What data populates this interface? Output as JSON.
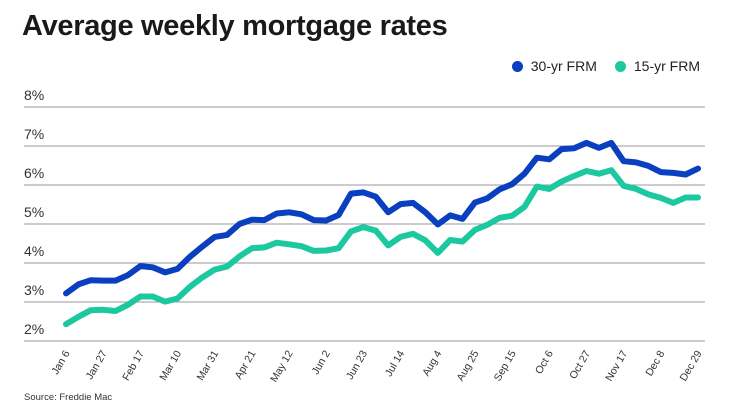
{
  "chart_data": {
    "type": "line",
    "title": "Average weekly mortgage rates",
    "xlabel": "",
    "ylabel": "",
    "ylim": [
      2,
      8
    ],
    "yticks": [
      "2%",
      "3%",
      "4%",
      "5%",
      "6%",
      "7%",
      "8%"
    ],
    "grid": true,
    "legend_position": "top-right",
    "x": [
      "Jan 6",
      "Jan 13",
      "Jan 20",
      "Jan 27",
      "Feb 3",
      "Feb 10",
      "Feb 17",
      "Feb 24",
      "Mar 3",
      "Mar 10",
      "Mar 17",
      "Mar 24",
      "Mar 31",
      "Apr 7",
      "Apr 14",
      "Apr 21",
      "Apr 28",
      "May 5",
      "May 12",
      "May 19",
      "May 26",
      "Jun 2",
      "Jun 9",
      "Jun 16",
      "Jun 23",
      "Jun 30",
      "Jul 7",
      "Jul 14",
      "Jul 21",
      "Jul 28",
      "Aug 4",
      "Aug 11",
      "Aug 18",
      "Aug 25",
      "Sep 1",
      "Sep 8",
      "Sep 15",
      "Sep 22",
      "Sep 29",
      "Oct 6",
      "Oct 13",
      "Oct 20",
      "Oct 27",
      "Nov 3",
      "Nov 10",
      "Nov 17",
      "Nov 23",
      "Dec 1",
      "Dec 8",
      "Dec 15",
      "Dec 22",
      "Dec 29"
    ],
    "xticks": [
      "Jan 6",
      "Jan 27",
      "Feb 17",
      "Mar 10",
      "Mar 31",
      "Apr 21",
      "May 12",
      "Jun 2",
      "Jun 23",
      "Jul 14",
      "Aug 4",
      "Aug 25",
      "Sep 15",
      "Oct 6",
      "Oct 27",
      "Nov 17",
      "Dec 8",
      "Dec 29"
    ],
    "series": [
      {
        "name": "30-yr FRM",
        "color": "#0a3fc0",
        "values": [
          3.22,
          3.45,
          3.56,
          3.55,
          3.55,
          3.69,
          3.92,
          3.89,
          3.76,
          3.85,
          4.16,
          4.42,
          4.67,
          4.72,
          5.0,
          5.11,
          5.1,
          5.27,
          5.3,
          5.25,
          5.1,
          5.09,
          5.23,
          5.78,
          5.81,
          5.7,
          5.3,
          5.51,
          5.54,
          5.3,
          4.99,
          5.22,
          5.13,
          5.55,
          5.66,
          5.89,
          6.02,
          6.29,
          6.7,
          6.66,
          6.92,
          6.94,
          7.08,
          6.95,
          7.08,
          6.61,
          6.58,
          6.49,
          6.33,
          6.31,
          6.27,
          6.42
        ]
      },
      {
        "name": "15-yr FRM",
        "color": "#1cc8a0",
        "values": [
          2.43,
          2.62,
          2.79,
          2.8,
          2.77,
          2.93,
          3.14,
          3.14,
          3.01,
          3.09,
          3.39,
          3.63,
          3.83,
          3.91,
          4.17,
          4.38,
          4.4,
          4.52,
          4.48,
          4.43,
          4.31,
          4.32,
          4.38,
          4.81,
          4.92,
          4.83,
          4.45,
          4.67,
          4.75,
          4.58,
          4.26,
          4.59,
          4.55,
          4.85,
          4.98,
          5.16,
          5.21,
          5.44,
          5.96,
          5.9,
          6.09,
          6.23,
          6.36,
          6.29,
          6.38,
          5.98,
          5.9,
          5.76,
          5.67,
          5.54,
          5.68,
          5.68
        ]
      }
    ],
    "source": "Source: Freddie Mac"
  }
}
